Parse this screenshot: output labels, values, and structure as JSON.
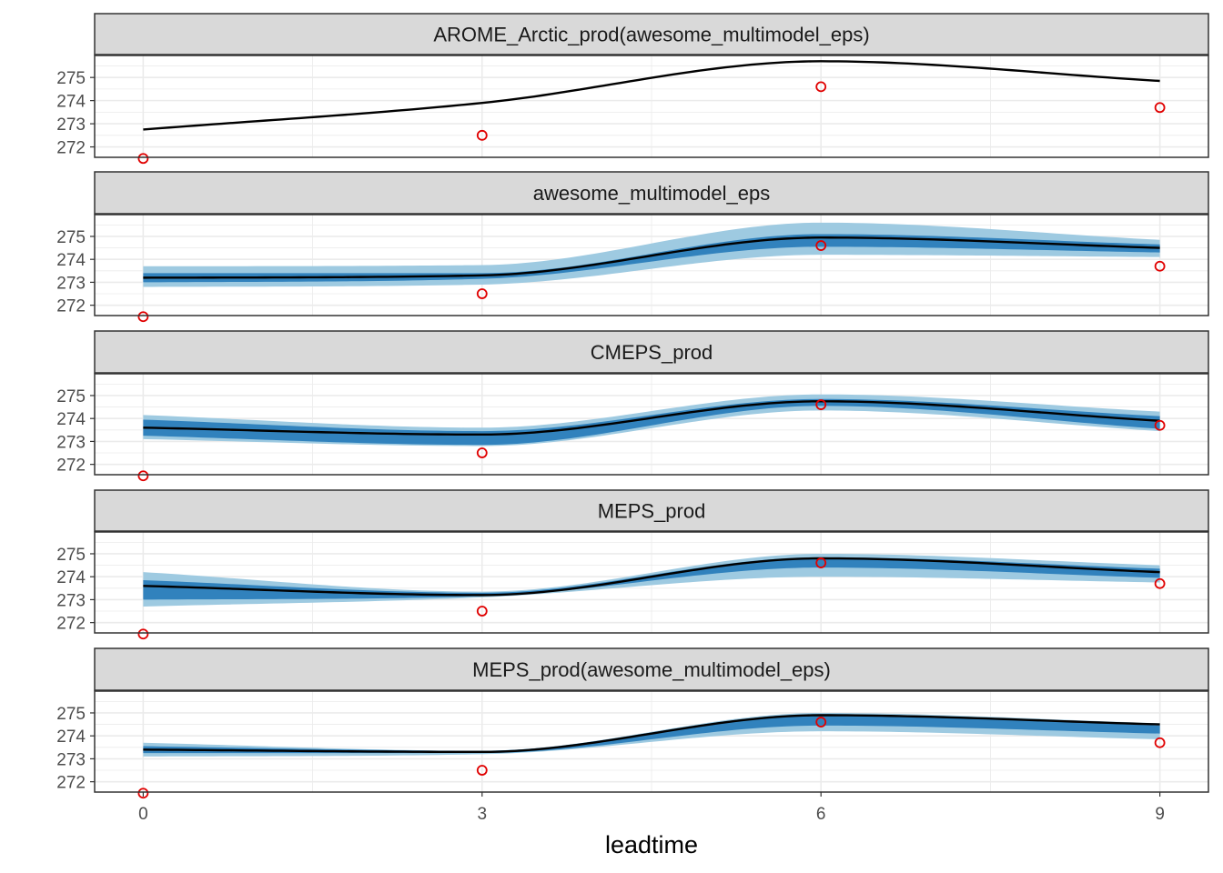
{
  "chart_data": {
    "type": "line",
    "description_x": "leadtime",
    "xlabel": "leadtime",
    "ylabel": "",
    "x": [
      0,
      3,
      6,
      9
    ],
    "xlim": [
      -0.43,
      9.43
    ],
    "ylim": [
      271.55,
      275.95
    ],
    "x_ticks": [
      0,
      3,
      6,
      9
    ],
    "y_ticks": [
      272,
      273,
      274,
      275
    ],
    "grid": true,
    "legend": "none",
    "colors": {
      "line": "#000000",
      "observation": "#e00000",
      "band_outer": "#9ecae1",
      "band_inner": "#3182bd",
      "strip_fill": "#d9d9d9",
      "panel_border": "#333333",
      "grid": "#ebebeb"
    },
    "observations": [
      271.5,
      272.5,
      274.6,
      273.7
    ],
    "panels": [
      {
        "title": "AROME_Arctic_prod(awesome_multimodel_eps)",
        "line": [
          272.75,
          273.9,
          275.7,
          274.85
        ],
        "outer_lo": null,
        "outer_hi": null,
        "inner_lo": null,
        "inner_hi": null
      },
      {
        "title": "awesome_multimodel_eps",
        "line": [
          273.2,
          273.3,
          274.95,
          274.5
        ],
        "outer_lo": [
          272.8,
          272.9,
          274.2,
          274.1
        ],
        "outer_hi": [
          273.7,
          273.75,
          275.6,
          274.85
        ],
        "inner_lo": [
          273.0,
          273.15,
          274.55,
          274.3
        ],
        "inner_hi": [
          273.4,
          273.4,
          275.1,
          274.65
        ]
      },
      {
        "title": "CMEPS_prod",
        "line": [
          273.6,
          273.3,
          274.75,
          273.9
        ],
        "outer_lo": [
          273.1,
          272.8,
          274.35,
          273.45
        ],
        "outer_hi": [
          274.15,
          273.6,
          275.05,
          274.3
        ],
        "inner_lo": [
          273.25,
          272.85,
          274.55,
          273.55
        ],
        "inner_hi": [
          273.95,
          273.45,
          274.85,
          274.1
        ]
      },
      {
        "title": "MEPS_prod",
        "line": [
          273.6,
          273.2,
          274.8,
          274.2
        ],
        "outer_lo": [
          272.7,
          273.1,
          274.0,
          273.75
        ],
        "outer_hi": [
          274.2,
          273.35,
          275.0,
          274.5
        ],
        "inner_lo": [
          273.0,
          273.15,
          274.4,
          273.95
        ],
        "inner_hi": [
          273.85,
          273.3,
          274.85,
          274.35
        ]
      },
      {
        "title": "MEPS_prod(awesome_multimodel_eps)",
        "line": [
          273.4,
          273.3,
          274.9,
          274.5
        ],
        "outer_lo": [
          273.1,
          273.2,
          274.2,
          273.85
        ],
        "outer_hi": [
          273.7,
          273.35,
          275.0,
          274.55
        ],
        "inner_lo": [
          273.25,
          273.25,
          274.45,
          274.1
        ],
        "inner_hi": [
          273.55,
          273.35,
          274.95,
          274.45
        ]
      }
    ]
  }
}
